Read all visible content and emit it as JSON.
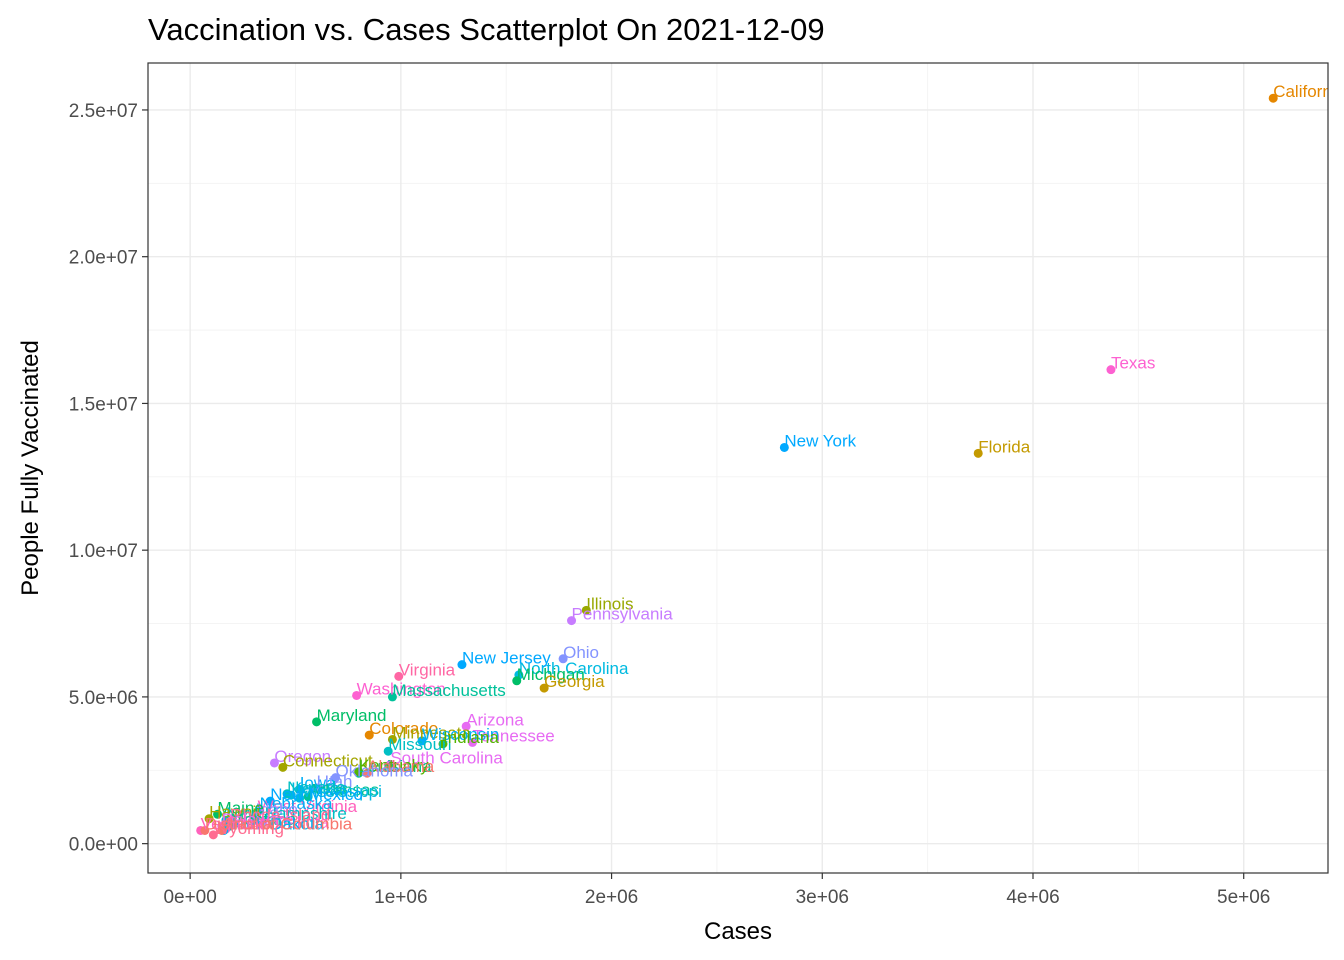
{
  "chart_data": {
    "type": "scatter",
    "title": "Vaccination vs. Cases Scatterplot On  2021-12-09",
    "xlabel": "Cases",
    "ylabel": "People Fully Vaccinated",
    "xlim": [
      -200000,
      5400000
    ],
    "ylim": [
      -1000000,
      26600000
    ],
    "x_ticks": [
      {
        "value": 0,
        "label": "0e+00"
      },
      {
        "value": 1000000,
        "label": "1e+06"
      },
      {
        "value": 2000000,
        "label": "2e+06"
      },
      {
        "value": 3000000,
        "label": "3e+06"
      },
      {
        "value": 4000000,
        "label": "4e+06"
      },
      {
        "value": 5000000,
        "label": "5e+06"
      }
    ],
    "y_ticks": [
      {
        "value": 0,
        "label": "0.0e+00"
      },
      {
        "value": 5000000,
        "label": "5.0e+06"
      },
      {
        "value": 10000000,
        "label": "1.0e+07"
      },
      {
        "value": 15000000,
        "label": "1.5e+07"
      },
      {
        "value": 20000000,
        "label": "2.0e+07"
      },
      {
        "value": 25000000,
        "label": "2.5e+07"
      }
    ],
    "grid": true,
    "legend": "none",
    "points": [
      {
        "label": "California",
        "x": 5140000,
        "y": 25400000,
        "color": "#e58700"
      },
      {
        "label": "Texas",
        "x": 4370000,
        "y": 16150000,
        "color": "#fd61d1"
      },
      {
        "label": "Florida",
        "x": 3740000,
        "y": 13300000,
        "color": "#c49a00"
      },
      {
        "label": "New York",
        "x": 2820000,
        "y": 13500000,
        "color": "#00a9ff"
      },
      {
        "label": "Illinois",
        "x": 1880000,
        "y": 7950000,
        "color": "#99a800"
      },
      {
        "label": "Pennsylvania",
        "x": 1810000,
        "y": 7600000,
        "color": "#c77cff"
      },
      {
        "label": "Ohio",
        "x": 1770000,
        "y": 6300000,
        "color": "#8494ff"
      },
      {
        "label": "North Carolina",
        "x": 1560000,
        "y": 5750000,
        "color": "#00bae0"
      },
      {
        "label": "Michigan",
        "x": 1550000,
        "y": 5550000,
        "color": "#00be67"
      },
      {
        "label": "Georgia",
        "x": 1680000,
        "y": 5300000,
        "color": "#c49a00"
      },
      {
        "label": "New Jersey",
        "x": 1290000,
        "y": 6100000,
        "color": "#00a9ff"
      },
      {
        "label": "Virginia",
        "x": 990000,
        "y": 5700000,
        "color": "#ff67a4"
      },
      {
        "label": "Washington",
        "x": 790000,
        "y": 5050000,
        "color": "#fd61d1"
      },
      {
        "label": "Massachusetts",
        "x": 960000,
        "y": 5000000,
        "color": "#00c19a"
      },
      {
        "label": "Maryland",
        "x": 600000,
        "y": 4150000,
        "color": "#00be67"
      },
      {
        "label": "Arizona",
        "x": 1310000,
        "y": 4000000,
        "color": "#e76bf3"
      },
      {
        "label": "Colorado",
        "x": 850000,
        "y": 3700000,
        "color": "#e58700"
      },
      {
        "label": "Minnesota",
        "x": 960000,
        "y": 3550000,
        "color": "#a3a500"
      },
      {
        "label": "Tennessee",
        "x": 1340000,
        "y": 3450000,
        "color": "#e76bf3"
      },
      {
        "label": "Wisconsin",
        "x": 1100000,
        "y": 3500000,
        "color": "#00b0f6"
      },
      {
        "label": "Missouri",
        "x": 940000,
        "y": 3150000,
        "color": "#00bfc4"
      },
      {
        "label": "Indiana",
        "x": 1200000,
        "y": 3400000,
        "color": "#53b400"
      },
      {
        "label": "Oregon",
        "x": 400000,
        "y": 2750000,
        "color": "#c77cff"
      },
      {
        "label": "Connecticut",
        "x": 440000,
        "y": 2600000,
        "color": "#a3a500"
      },
      {
        "label": "South Carolina",
        "x": 950000,
        "y": 2700000,
        "color": "#e76bf3"
      },
      {
        "label": "Louisiana",
        "x": 800000,
        "y": 2400000,
        "color": "#00c08b"
      },
      {
        "label": "Kentucky",
        "x": 800000,
        "y": 2450000,
        "color": "#53b400"
      },
      {
        "label": "Alabama",
        "x": 840000,
        "y": 2400000,
        "color": "#f8766d"
      },
      {
        "label": "Oklahoma",
        "x": 690000,
        "y": 2250000,
        "color": "#8494ff"
      },
      {
        "label": "Iowa",
        "x": 520000,
        "y": 1850000,
        "color": "#00b0f6"
      },
      {
        "label": "Utah",
        "x": 600000,
        "y": 1900000,
        "color": "#8494ff"
      },
      {
        "label": "Kansas",
        "x": 480000,
        "y": 1650000,
        "color": "#00bae0"
      },
      {
        "label": "Nevada",
        "x": 460000,
        "y": 1700000,
        "color": "#00bfc4"
      },
      {
        "label": "Arkansas",
        "x": 560000,
        "y": 1600000,
        "color": "#00c19a"
      },
      {
        "label": "Mississippi",
        "x": 520000,
        "y": 1550000,
        "color": "#00bae0"
      },
      {
        "label": "New Mexico",
        "x": 380000,
        "y": 1450000,
        "color": "#00a9ff"
      },
      {
        "label": "West Virginia",
        "x": 320000,
        "y": 1050000,
        "color": "#ff62bc"
      },
      {
        "label": "Nebraska",
        "x": 330000,
        "y": 1150000,
        "color": "#00b0f6"
      },
      {
        "label": "Idaho",
        "x": 310000,
        "y": 950000,
        "color": "#9590ff"
      },
      {
        "label": "Maine",
        "x": 130000,
        "y": 1000000,
        "color": "#00be67"
      },
      {
        "label": "New Hampshire",
        "x": 170000,
        "y": 800000,
        "color": "#00bfc4"
      },
      {
        "label": "Hawaii",
        "x": 90000,
        "y": 850000,
        "color": "#a3a500"
      },
      {
        "label": "Rhode Island",
        "x": 190000,
        "y": 750000,
        "color": "#ff6c91"
      },
      {
        "label": "Montana",
        "x": 190000,
        "y": 600000,
        "color": "#00c08b"
      },
      {
        "label": "Delaware",
        "x": 150000,
        "y": 600000,
        "color": "#e76bf3"
      },
      {
        "label": "South Dakota",
        "x": 170000,
        "y": 500000,
        "color": "#ff61c3"
      },
      {
        "label": "North Dakota",
        "x": 160000,
        "y": 450000,
        "color": "#00b4f0"
      },
      {
        "label": "Alaska",
        "x": 150000,
        "y": 450000,
        "color": "#f8766d"
      },
      {
        "label": "Vermont",
        "x": 50000,
        "y": 450000,
        "color": "#ff62bc"
      },
      {
        "label": "Wyoming",
        "x": 110000,
        "y": 300000,
        "color": "#ff6c91"
      },
      {
        "label": "District of Columbia",
        "x": 70000,
        "y": 450000,
        "color": "#f8766d"
      }
    ]
  }
}
